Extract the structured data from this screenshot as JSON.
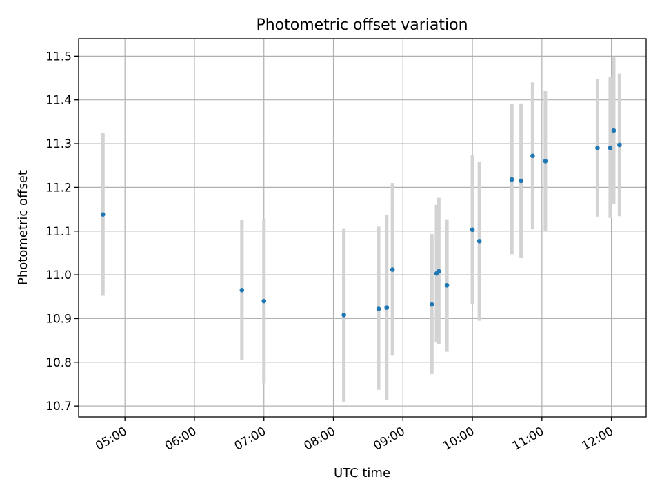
{
  "chart_data": {
    "type": "scatter",
    "title": "Photometric offset variation",
    "xlabel": "UTC time",
    "ylabel": "Photometric offset",
    "x_unit": "UTC hours",
    "xlim": [
      "04:20",
      "12:30"
    ],
    "ylim": [
      10.675,
      11.54
    ],
    "xticks": [
      "05:00",
      "06:00",
      "07:00",
      "08:00",
      "09:00",
      "10:00",
      "11:00",
      "12:00"
    ],
    "yticks": [
      "10.7",
      "10.8",
      "10.9",
      "11.0",
      "11.1",
      "11.2",
      "11.3",
      "11.4",
      "11.5"
    ],
    "grid": true,
    "marker_color": "#1f77b4",
    "errorbar_color": "#d3d3d3",
    "points": [
      {
        "time": "04:41",
        "y": 11.138,
        "yerr_low": 10.952,
        "yerr_high": 11.325
      },
      {
        "time": "06:41",
        "y": 10.965,
        "yerr_low": 10.806,
        "yerr_high": 11.125
      },
      {
        "time": "07:00",
        "y": 10.94,
        "yerr_low": 10.752,
        "yerr_high": 11.128
      },
      {
        "time": "08:09",
        "y": 10.908,
        "yerr_low": 10.71,
        "yerr_high": 11.105
      },
      {
        "time": "08:39",
        "y": 10.922,
        "yerr_low": 10.737,
        "yerr_high": 11.11
      },
      {
        "time": "08:46",
        "y": 10.925,
        "yerr_low": 10.714,
        "yerr_high": 11.137
      },
      {
        "time": "08:51",
        "y": 11.012,
        "yerr_low": 10.815,
        "yerr_high": 11.21
      },
      {
        "time": "09:25",
        "y": 10.932,
        "yerr_low": 10.773,
        "yerr_high": 11.093
      },
      {
        "time": "09:29",
        "y": 11.003,
        "yerr_low": 10.845,
        "yerr_high": 11.16
      },
      {
        "time": "09:31",
        "y": 11.008,
        "yerr_low": 10.842,
        "yerr_high": 11.176
      },
      {
        "time": "09:38",
        "y": 10.976,
        "yerr_low": 10.824,
        "yerr_high": 11.127
      },
      {
        "time": "10:00",
        "y": 11.103,
        "yerr_low": 10.932,
        "yerr_high": 11.273
      },
      {
        "time": "10:06",
        "y": 11.077,
        "yerr_low": 10.895,
        "yerr_high": 11.258
      },
      {
        "time": "10:34",
        "y": 11.218,
        "yerr_low": 11.047,
        "yerr_high": 11.39
      },
      {
        "time": "10:42",
        "y": 11.215,
        "yerr_low": 11.038,
        "yerr_high": 11.392
      },
      {
        "time": "10:52",
        "y": 11.272,
        "yerr_low": 11.104,
        "yerr_high": 11.44
      },
      {
        "time": "11:03",
        "y": 11.26,
        "yerr_low": 11.1,
        "yerr_high": 11.42
      },
      {
        "time": "11:48",
        "y": 11.29,
        "yerr_low": 11.133,
        "yerr_high": 11.448
      },
      {
        "time": "11:59",
        "y": 11.29,
        "yerr_low": 11.13,
        "yerr_high": 11.452
      },
      {
        "time": "12:02",
        "y": 11.33,
        "yerr_low": 11.163,
        "yerr_high": 11.497
      },
      {
        "time": "12:07",
        "y": 11.297,
        "yerr_low": 11.134,
        "yerr_high": 11.46
      }
    ]
  }
}
